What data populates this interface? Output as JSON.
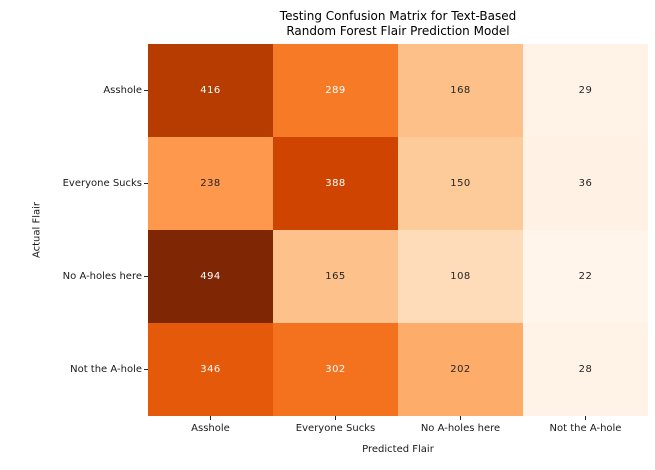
{
  "title": {
    "line1": "Testing Confusion Matrix for Text-Based",
    "line2": "Random Forest Flair Prediction Model"
  },
  "axes": {
    "x_label": "Predicted Flair",
    "y_label": "Actual Flair"
  },
  "chart_data": {
    "type": "heatmap",
    "title": "Testing Confusion Matrix for Text-Based\nRandom Forest Flair Prediction Model",
    "xlabel": "Predicted Flair",
    "ylabel": "Actual Flair",
    "x_categories": [
      "Asshole",
      "Everyone Sucks",
      "No A-holes here",
      "Not the A-hole"
    ],
    "y_categories": [
      "Asshole",
      "Everyone Sucks",
      "No A-holes here",
      "Not the A-hole"
    ],
    "values": [
      [
        416,
        289,
        168,
        29
      ],
      [
        238,
        388,
        150,
        36
      ],
      [
        494,
        165,
        108,
        22
      ],
      [
        346,
        302,
        202,
        28
      ]
    ],
    "colormap": "Oranges",
    "vmin": 22,
    "vmax": 494,
    "legend": "none",
    "grid": false,
    "cell_colors": [
      [
        "#b63c02",
        "#f77a26",
        "#fdc088",
        "#fff3e8"
      ],
      [
        "#fd984c",
        "#cf4401",
        "#fdca99",
        "#fff1e4"
      ],
      [
        "#7f2704",
        "#fdc28b",
        "#fedcba",
        "#fff5eb"
      ],
      [
        "#e5590a",
        "#f4721d",
        "#fdac69",
        "#fff3e8"
      ]
    ],
    "text_colors": [
      [
        "#ffffff",
        "#ffffff",
        "#262626",
        "#262626"
      ],
      [
        "#262626",
        "#ffffff",
        "#262626",
        "#262626"
      ],
      [
        "#ffffff",
        "#262626",
        "#262626",
        "#262626"
      ],
      [
        "#ffffff",
        "#ffffff",
        "#262626",
        "#262626"
      ]
    ],
    "tick_color": "#262626",
    "background_color": "#ffffff"
  }
}
